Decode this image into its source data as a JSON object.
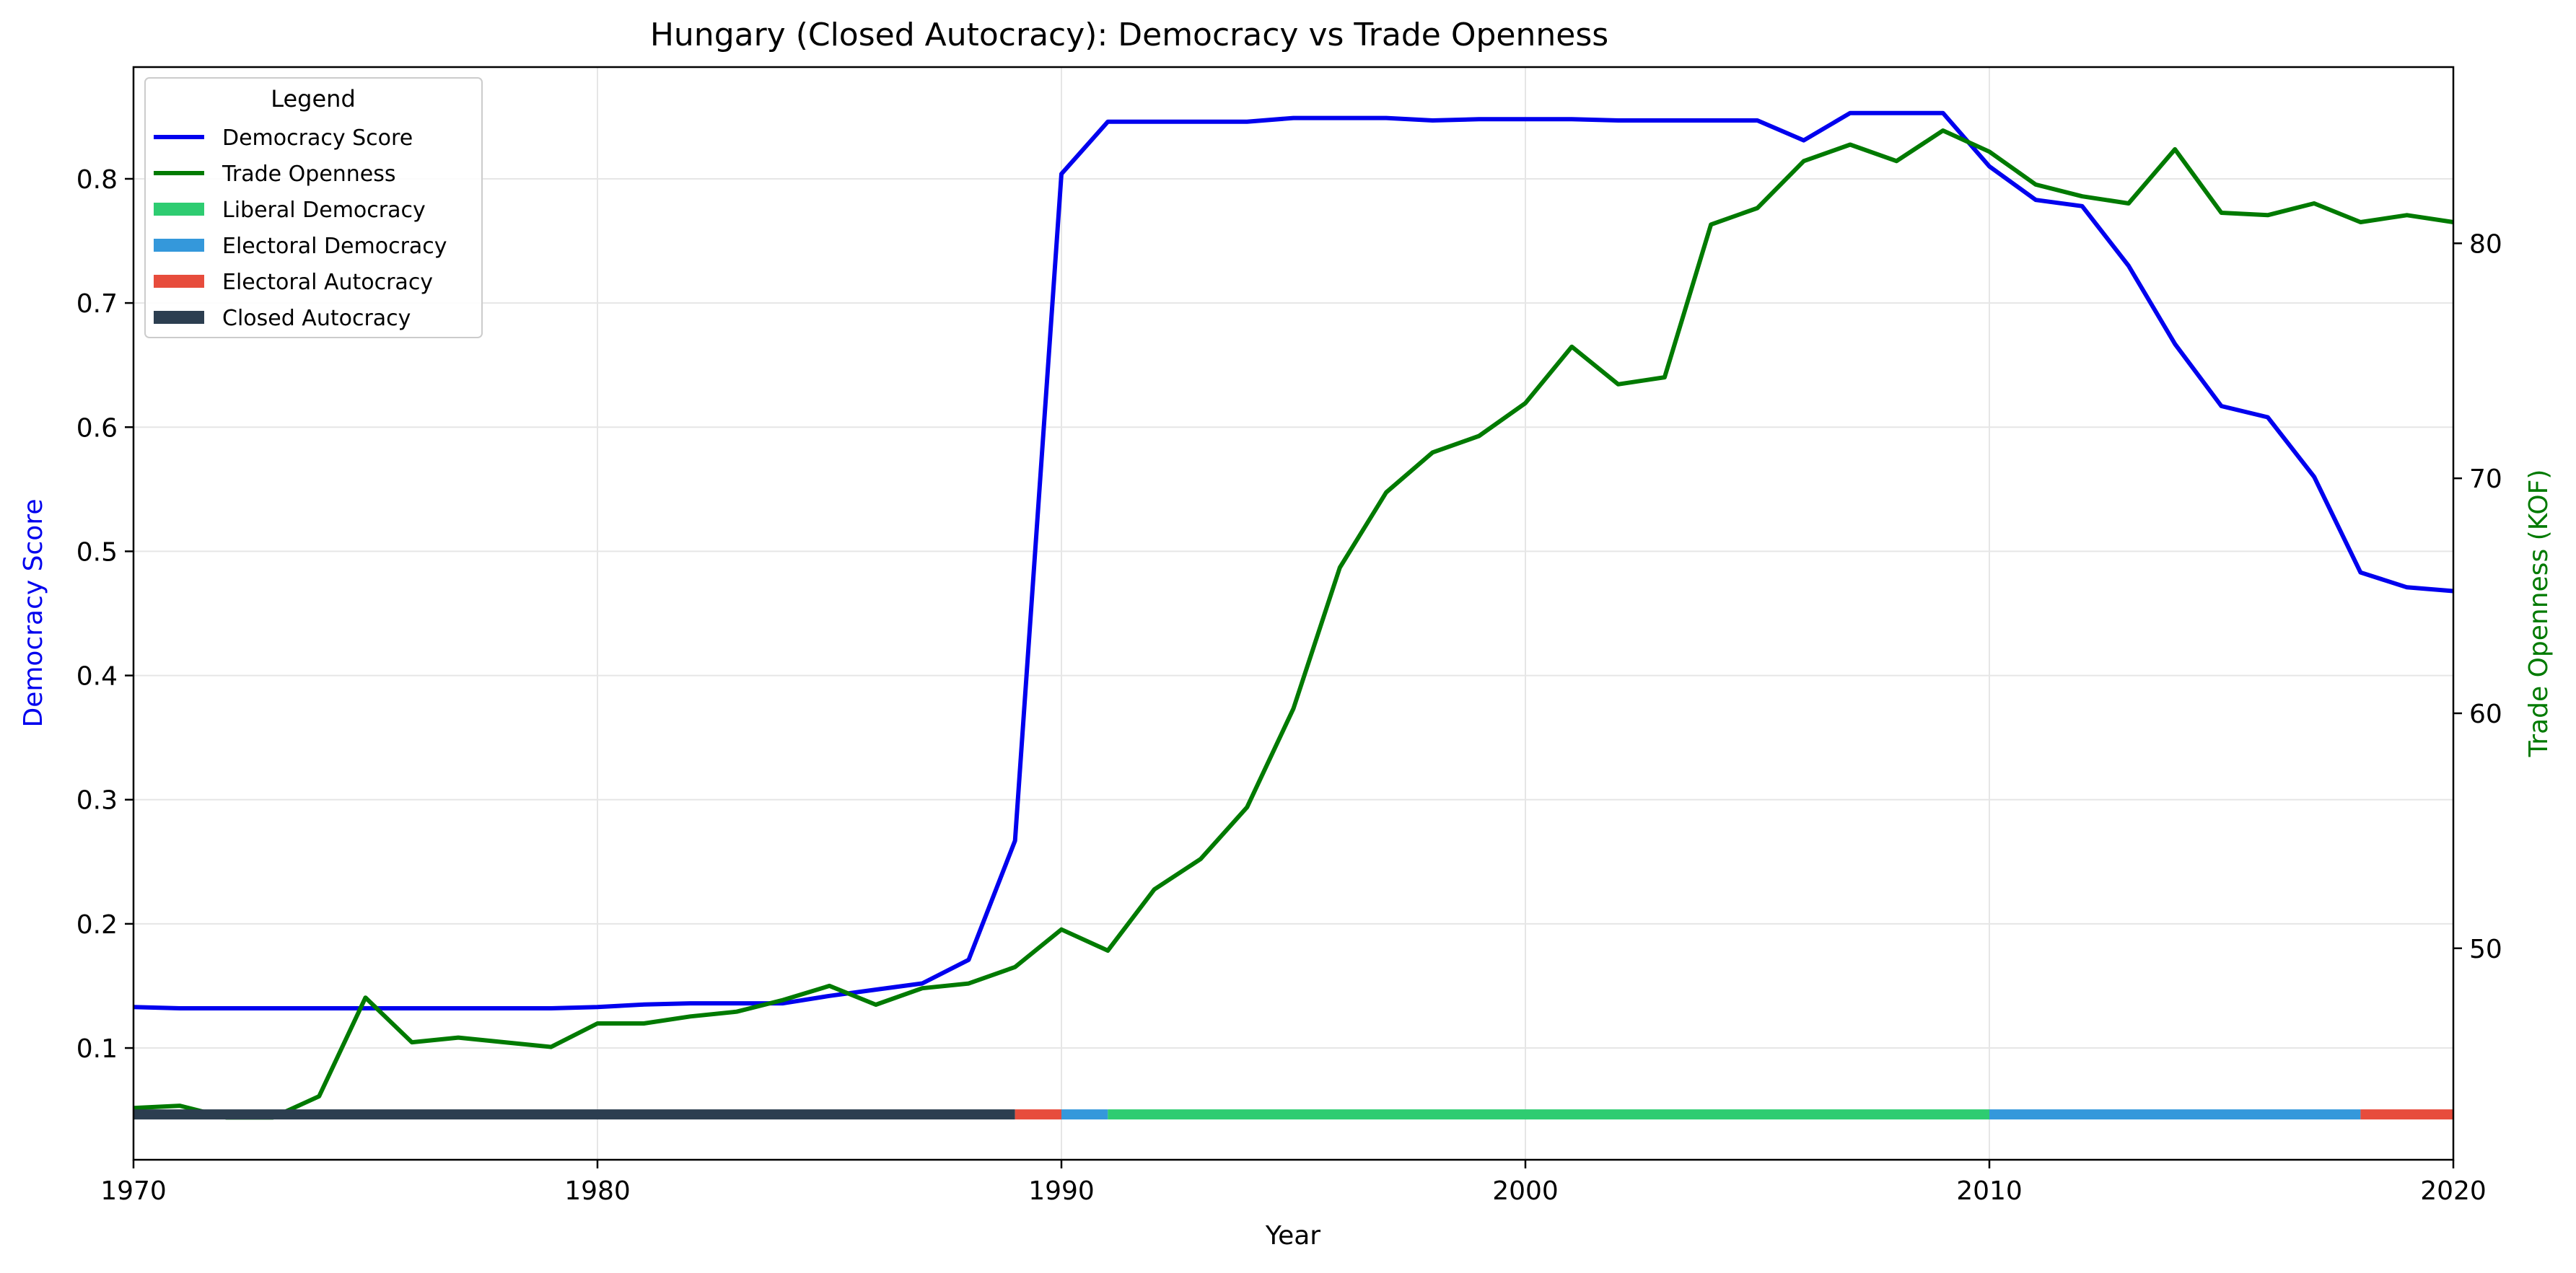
{
  "chart_data": {
    "type": "line",
    "title": "Hungary (Closed Autocracy): Democracy vs Trade Openness",
    "xlabel": "Year",
    "ylabel_left": "Democracy Score",
    "ylabel_right": "Trade Openness (KOF)",
    "xlim": [
      1970,
      2020
    ],
    "ylim_left": [
      0.01,
      0.89
    ],
    "ylim_right": [
      41.0,
      87.5
    ],
    "grid": true,
    "x_ticks": [
      1970,
      1980,
      1990,
      2000,
      2010,
      2020
    ],
    "y_ticks_left": [
      0.1,
      0.2,
      0.3,
      0.4,
      0.5,
      0.6,
      0.7,
      0.8
    ],
    "y_ticks_right": [
      50,
      60,
      70,
      80
    ],
    "legend": {
      "title": "Legend",
      "position": "top-left",
      "entries": [
        {
          "label": "Democracy Score",
          "kind": "line",
          "color": "#0000ee"
        },
        {
          "label": "Trade Openness",
          "kind": "line",
          "color": "#007a00"
        },
        {
          "label": "Liberal Democracy",
          "kind": "patch",
          "color": "#2ecc71"
        },
        {
          "label": "Electoral Democracy",
          "kind": "patch",
          "color": "#3498db"
        },
        {
          "label": "Electoral Autocracy",
          "kind": "patch",
          "color": "#e74c3c"
        },
        {
          "label": "Closed Autocracy",
          "kind": "patch",
          "color": "#2c3e50"
        }
      ]
    },
    "series": [
      {
        "name": "Democracy Score",
        "axis": "left",
        "color": "#0000ee",
        "x": [
          1970,
          1971,
          1972,
          1973,
          1974,
          1975,
          1976,
          1977,
          1978,
          1979,
          1980,
          1981,
          1982,
          1983,
          1984,
          1985,
          1986,
          1987,
          1988,
          1989,
          1990,
          1991,
          1992,
          1993,
          1994,
          1995,
          1996,
          1997,
          1998,
          1999,
          2000,
          2001,
          2002,
          2003,
          2004,
          2005,
          2006,
          2007,
          2008,
          2009,
          2010,
          2011,
          2012,
          2013,
          2014,
          2015,
          2016,
          2017,
          2018,
          2019,
          2020
        ],
        "y": [
          0.133,
          0.132,
          0.132,
          0.132,
          0.132,
          0.132,
          0.132,
          0.132,
          0.132,
          0.132,
          0.133,
          0.135,
          0.136,
          0.136,
          0.136,
          0.142,
          0.147,
          0.152,
          0.171,
          0.267,
          0.804,
          0.846,
          0.846,
          0.846,
          0.846,
          0.849,
          0.849,
          0.849,
          0.847,
          0.848,
          0.848,
          0.848,
          0.847,
          0.847,
          0.847,
          0.847,
          0.831,
          0.853,
          0.853,
          0.853,
          0.81,
          0.783,
          0.778,
          0.73,
          0.667,
          0.617,
          0.608,
          0.56,
          0.483,
          0.471,
          0.468
        ]
      },
      {
        "name": "Trade Openness",
        "axis": "right",
        "color": "#007a00",
        "x": [
          1970,
          1971,
          1972,
          1973,
          1974,
          1975,
          1976,
          1977,
          1978,
          1979,
          1980,
          1981,
          1982,
          1983,
          1984,
          1985,
          1986,
          1987,
          1988,
          1989,
          1990,
          1991,
          1992,
          1993,
          1994,
          1995,
          1996,
          1997,
          1998,
          1999,
          2000,
          2001,
          2002,
          2003,
          2004,
          2005,
          2006,
          2007,
          2008,
          2009,
          2010,
          2011,
          2012,
          2013,
          2014,
          2015,
          2016,
          2017,
          2018,
          2019,
          2020
        ],
        "y": [
          43.2,
          43.3,
          42.8,
          42.8,
          43.7,
          47.9,
          46.0,
          46.2,
          46.0,
          45.8,
          46.8,
          46.8,
          47.1,
          47.3,
          47.8,
          48.4,
          47.6,
          48.3,
          48.5,
          49.2,
          50.8,
          49.9,
          52.5,
          53.8,
          56.0,
          60.2,
          66.2,
          69.4,
          71.1,
          71.8,
          73.2,
          75.6,
          74.0,
          74.3,
          80.8,
          81.5,
          83.5,
          84.2,
          83.5,
          84.8,
          83.9,
          82.5,
          82.0,
          81.7,
          84.0,
          81.3,
          81.2,
          81.7,
          80.9,
          81.2,
          80.9
        ]
      }
    ],
    "regime_bar": {
      "y_level": 0.0465,
      "segments": [
        {
          "label": "Closed Autocracy",
          "start": 1970,
          "end": 1989,
          "color": "#2c3e50"
        },
        {
          "label": "Electoral Autocracy",
          "start": 1989,
          "end": 1990,
          "color": "#e74c3c"
        },
        {
          "label": "Electoral Democracy",
          "start": 1990,
          "end": 1991,
          "color": "#3498db"
        },
        {
          "label": "Liberal Democracy",
          "start": 1991,
          "end": 2010,
          "color": "#2ecc71"
        },
        {
          "label": "Electoral Democracy",
          "start": 2010,
          "end": 2018,
          "color": "#3498db"
        },
        {
          "label": "Electoral Autocracy",
          "start": 2018,
          "end": 2020,
          "color": "#e74c3c"
        }
      ]
    },
    "colors": {
      "ylabel_left": "#0000ee",
      "ylabel_right": "#007a00",
      "grid": "#e6e6e6",
      "axes": "#000000"
    }
  }
}
